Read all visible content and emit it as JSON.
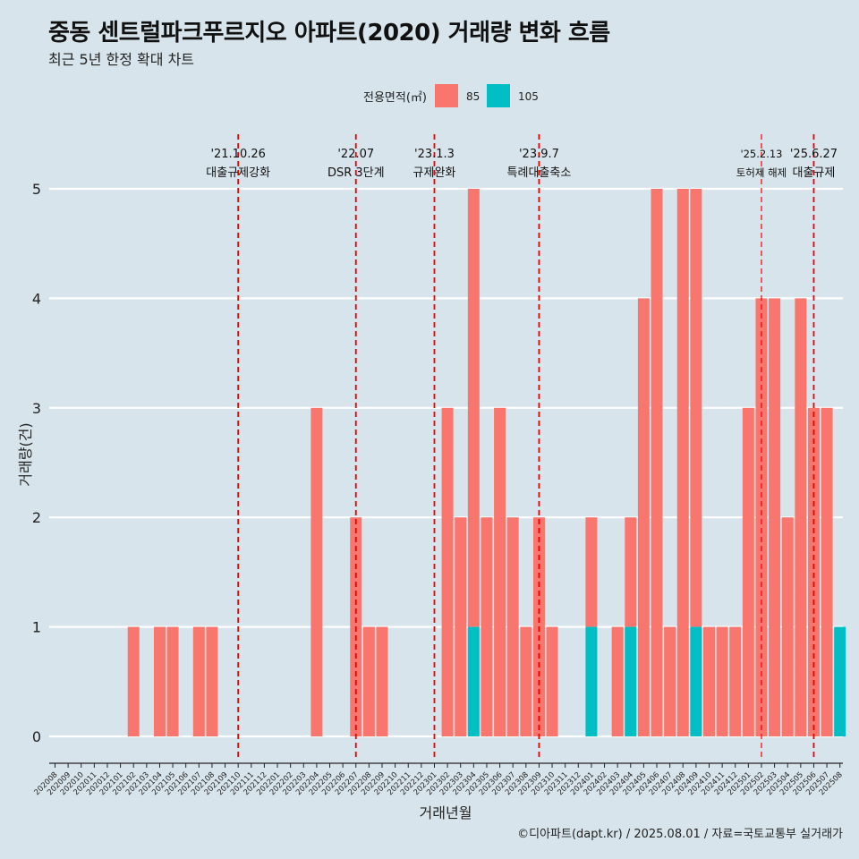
{
  "title": "중동 센트럴파크푸르지오 아파트(2020) 거래량 변화 흐름",
  "subtitle": "최근 5년 한정 확대 차트",
  "caption": "©디아파트(dapt.kr) / 2025.08.01 / 자료=국토교통부 실거래가",
  "colors": {
    "background": "#d7e4ec",
    "s85": "#f8766d",
    "s105": "#00bfc4",
    "event_line": "#ee0000",
    "grid": "#ffffff"
  },
  "chart_data": {
    "type": "bar",
    "title": "중동 센트럴파크푸르지오 아파트(2020) 거래량 변화 흐름",
    "subtitle": "최근 5년 한정 확대 차트",
    "xlabel": "거래년월",
    "ylabel": "거래량(건)",
    "ylim": [
      0,
      5
    ],
    "yticks": [
      0,
      1,
      2,
      3,
      4,
      5
    ],
    "grid": "horizontal",
    "legend_title": "전용면적(㎡)",
    "legend_position": "top",
    "categories": [
      "202008",
      "202009",
      "202010",
      "202011",
      "202012",
      "202101",
      "202102",
      "202103",
      "202104",
      "202105",
      "202106",
      "202107",
      "202108",
      "202109",
      "202110",
      "202111",
      "202112",
      "202201",
      "202202",
      "202203",
      "202204",
      "202205",
      "202206",
      "202207",
      "202208",
      "202209",
      "202210",
      "202211",
      "202212",
      "202301",
      "202302",
      "202303",
      "202304",
      "202305",
      "202306",
      "202307",
      "202308",
      "202309",
      "202310",
      "202311",
      "202312",
      "202401",
      "202402",
      "202403",
      "202404",
      "202405",
      "202406",
      "202407",
      "202408",
      "202409",
      "202410",
      "202411",
      "202412",
      "202501",
      "202502",
      "202503",
      "202504",
      "202505",
      "202506",
      "202507",
      "202508"
    ],
    "series": [
      {
        "name": "85",
        "color": "#f8766d",
        "values": [
          0,
          0,
          0,
          0,
          0,
          0,
          1,
          0,
          1,
          1,
          0,
          1,
          1,
          0,
          0,
          0,
          0,
          0,
          0,
          0,
          3,
          0,
          0,
          2,
          1,
          1,
          0,
          0,
          0,
          0,
          3,
          2,
          4,
          2,
          3,
          2,
          1,
          2,
          1,
          0,
          0,
          1,
          0,
          1,
          1,
          4,
          5,
          1,
          5,
          4,
          1,
          1,
          1,
          3,
          4,
          4,
          2,
          4,
          3,
          3,
          0
        ]
      },
      {
        "name": "105",
        "color": "#00bfc4",
        "values": [
          0,
          0,
          0,
          0,
          0,
          0,
          0,
          0,
          0,
          0,
          0,
          0,
          0,
          0,
          0,
          0,
          0,
          0,
          0,
          0,
          0,
          0,
          0,
          0,
          0,
          0,
          0,
          0,
          0,
          0,
          0,
          0,
          1,
          0,
          0,
          0,
          0,
          0,
          0,
          0,
          0,
          1,
          0,
          0,
          1,
          0,
          0,
          0,
          0,
          1,
          0,
          0,
          0,
          0,
          0,
          0,
          0,
          0,
          0,
          0,
          1
        ]
      }
    ],
    "events": [
      {
        "date": "'21.10.26",
        "label": "대출규제강화",
        "at": "202110"
      },
      {
        "date": "'22.07",
        "label": "DSR 3단계",
        "at": "202207"
      },
      {
        "date": "'23.1.3",
        "label": "규제완화",
        "at": "202301"
      },
      {
        "date": "'23.9.7",
        "label": "특례대출축소",
        "at": "202309"
      },
      {
        "date": "'25.2.13",
        "label": "토허제 해제",
        "at": "202502"
      },
      {
        "date": "'25.6.27",
        "label": "대출규제",
        "at": "202506"
      }
    ]
  }
}
